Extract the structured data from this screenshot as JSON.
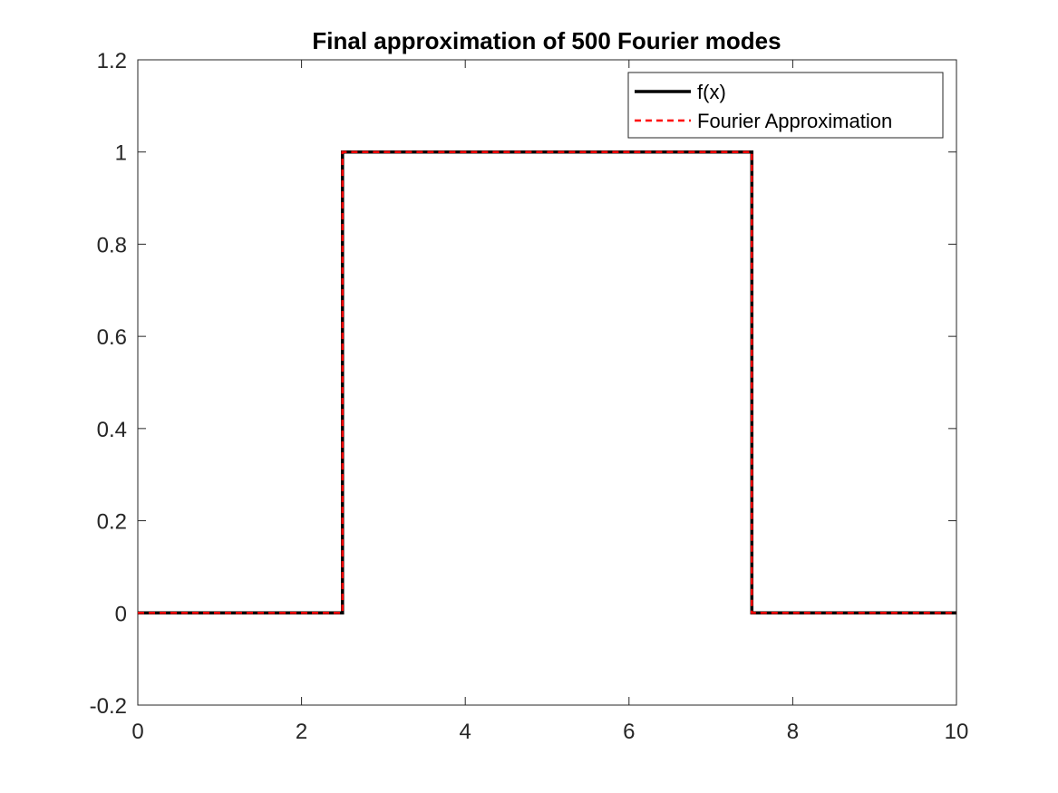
{
  "chart_data": {
    "type": "line",
    "title": "Final approximation of 500 Fourier modes",
    "xlabel": "",
    "ylabel": "",
    "xlim": [
      0,
      10
    ],
    "ylim": [
      -0.2,
      1.2
    ],
    "xticks": [
      0,
      2,
      4,
      6,
      8,
      10
    ],
    "xtick_labels": [
      "0",
      "2",
      "4",
      "6",
      "8",
      "10"
    ],
    "yticks": [
      -0.2,
      0,
      0.2,
      0.4,
      0.6,
      0.8,
      1,
      1.2
    ],
    "ytick_labels": [
      "-0.2",
      "0",
      "0.2",
      "0.4",
      "0.6",
      "0.8",
      "1",
      "1.2"
    ],
    "grid": false,
    "legend_position": "top-right",
    "series": [
      {
        "name": "f(x)",
        "color": "#000000",
        "style": "solid",
        "x": [
          0,
          2.5,
          2.5,
          7.5,
          7.5,
          10
        ],
        "y": [
          0,
          0,
          1,
          1,
          0,
          0
        ]
      },
      {
        "name": "Fourier Approximation",
        "color": "#ff0000",
        "style": "dashed",
        "x": [
          0,
          2.5,
          2.5,
          7.5,
          7.5,
          10
        ],
        "y": [
          0,
          0,
          1,
          1,
          0,
          0
        ]
      }
    ]
  }
}
